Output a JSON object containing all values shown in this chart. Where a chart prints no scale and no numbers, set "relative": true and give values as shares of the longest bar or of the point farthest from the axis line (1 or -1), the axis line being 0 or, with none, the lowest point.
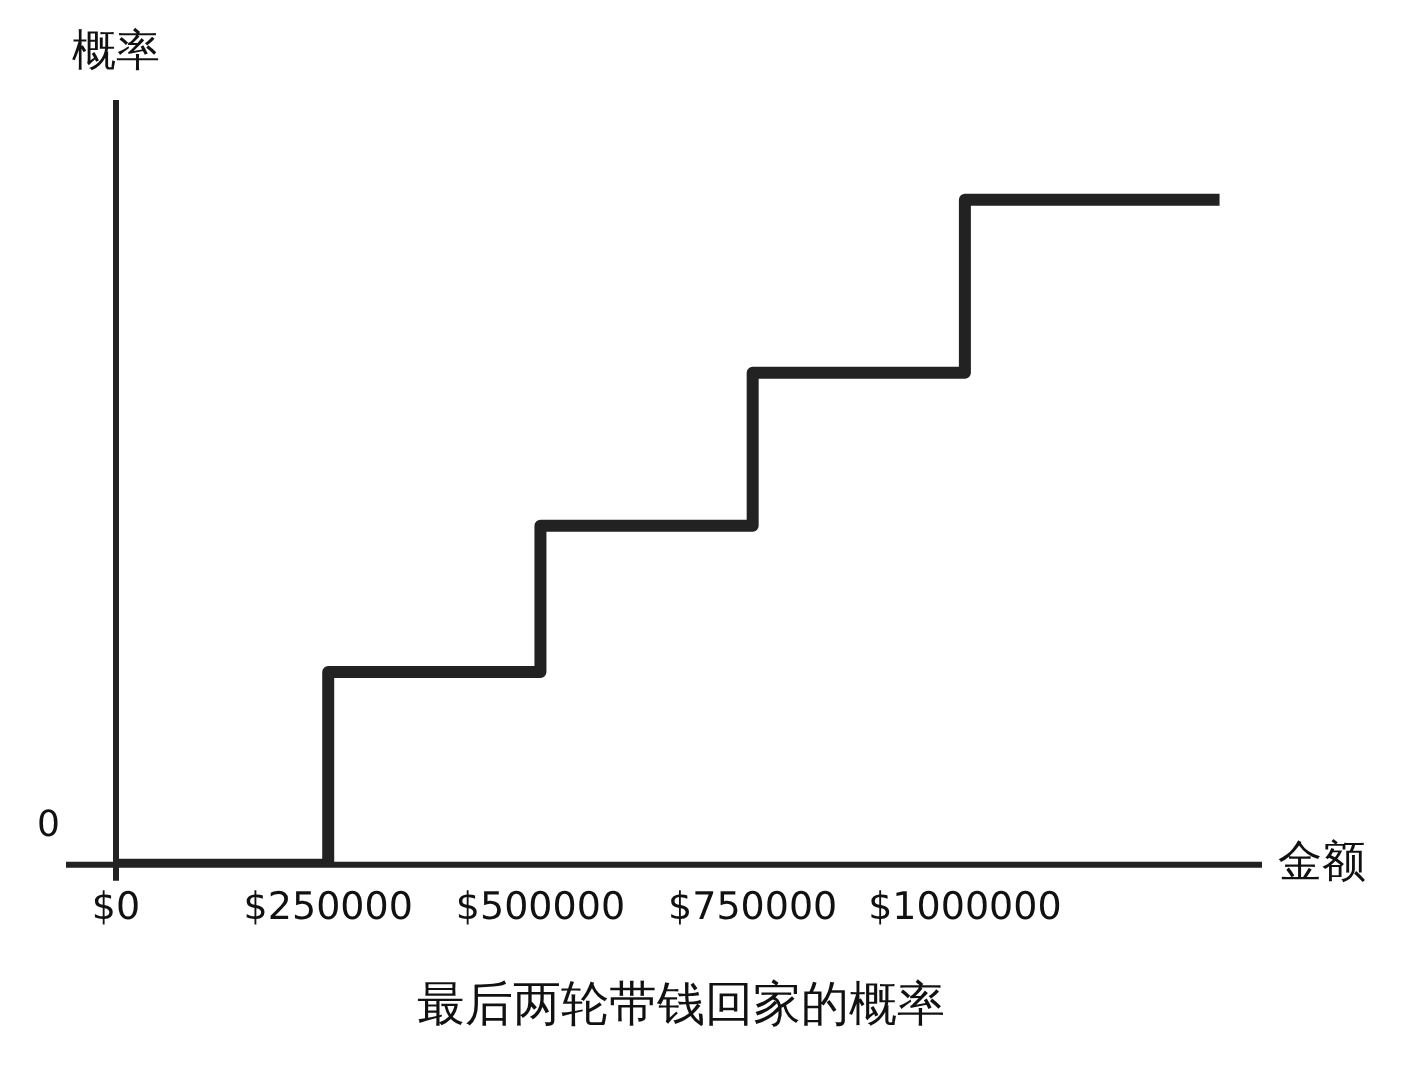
{
  "chart_data": {
    "type": "step",
    "title": "最后两轮带钱回家的概率",
    "xlabel": "金额",
    "ylabel": "概率",
    "relative": true,
    "x": [
      0,
      250000,
      500000,
      750000,
      1000000,
      1300000
    ],
    "series": [
      {
        "color": "#222222",
        "values": [
          0,
          0.29,
          0.51,
          0.74,
          1,
          1
        ]
      }
    ],
    "xlim": [
      0,
      1350000
    ],
    "xticks": [
      {
        "value": 0,
        "label": "$0"
      },
      {
        "value": 250000,
        "label": "$250000"
      },
      {
        "value": 500000,
        "label": "$500000"
      },
      {
        "value": 750000,
        "label": "$750000"
      },
      {
        "value": 1000000,
        "label": "$1000000"
      }
    ],
    "annotations": [
      "0"
    ],
    "grid": false,
    "legend": false,
    "marker": "none",
    "line_style": "solid"
  }
}
